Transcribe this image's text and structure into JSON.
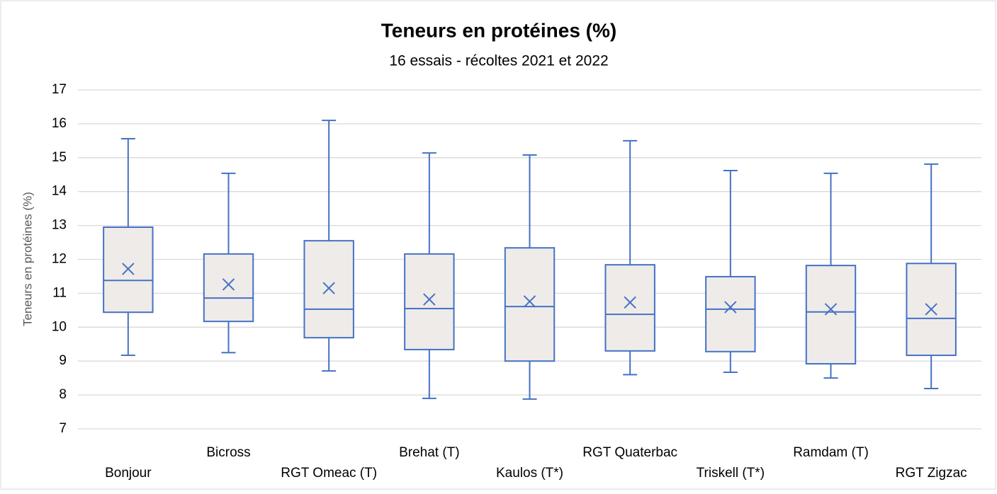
{
  "chart_data": {
    "type": "box",
    "title": "Teneurs en protéines (%)",
    "subtitle": "16 essais - récoltes 2021 et 2022",
    "y_label": "Teneurs en protéines (%)",
    "categories": [
      "Bonjour",
      "Bicross",
      "RGT Omeac (T)",
      "Brehat (T)",
      "Kaulos (T*)",
      "RGT Quaterbac",
      "Triskell (T*)",
      "Ramdam (T)",
      "RGT Zigzac"
    ],
    "color": "#4472c4",
    "box_fill": "#efebe9",
    "min": [
      9.17,
      9.25,
      8.71,
      7.9,
      7.88,
      8.6,
      8.67,
      8.5,
      8.19
    ],
    "q1": [
      10.44,
      10.17,
      9.69,
      9.34,
      9.0,
      9.3,
      9.28,
      8.92,
      9.17
    ],
    "median": [
      11.38,
      10.86,
      10.53,
      10.55,
      10.61,
      10.38,
      10.53,
      10.45,
      10.26
    ],
    "q3": [
      12.95,
      12.16,
      12.55,
      12.16,
      12.34,
      11.84,
      11.49,
      11.82,
      11.88
    ],
    "max": [
      15.56,
      14.54,
      16.1,
      15.14,
      15.08,
      15.5,
      14.62,
      14.54,
      14.81
    ],
    "mean": [
      11.72,
      11.26,
      11.15,
      10.82,
      10.76,
      10.73,
      10.59,
      10.53,
      10.53
    ],
    "ylim": [
      7,
      17
    ],
    "yticks": [
      7,
      8,
      9,
      10,
      11,
      12,
      13,
      14,
      15,
      16,
      17
    ],
    "grid": true
  }
}
